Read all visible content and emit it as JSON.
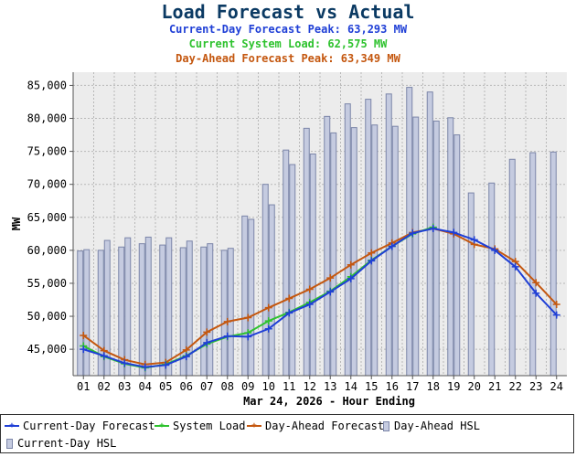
{
  "header": {
    "title": "Load Forecast vs Actual",
    "current_day_peak": "Current-Day Forecast Peak:  63,293 MW",
    "system_load": "Current System Load:  62,575 MW",
    "day_ahead_peak": "Day-Ahead Forecast Peak:  63,349 MW"
  },
  "colors": {
    "title": "#0b3a63",
    "current_day": "#1f3fd6",
    "system_load": "#2ec22e",
    "day_ahead": "#c4570f",
    "hsl_fill": "#c5cbe0",
    "hsl_stroke": "#7b85a8",
    "plot_bg": "#ececec",
    "grid": "#b8b8b8"
  },
  "chart_data": {
    "type": "bar",
    "xlabel": "Mar 24, 2026 - Hour Ending",
    "ylabel": "MW",
    "ylim": [
      41000,
      87000
    ],
    "yticks": [
      45000,
      50000,
      55000,
      60000,
      65000,
      70000,
      75000,
      80000,
      85000
    ],
    "ytick_labels": [
      "45,000",
      "50,000",
      "55,000",
      "60,000",
      "65,000",
      "70,000",
      "75,000",
      "80,000",
      "85,000"
    ],
    "grid": true,
    "legend_position": "bottom",
    "categories": [
      "01",
      "02",
      "03",
      "04",
      "05",
      "06",
      "07",
      "08",
      "09",
      "10",
      "11",
      "12",
      "13",
      "14",
      "15",
      "16",
      "17",
      "18",
      "19",
      "20",
      "21",
      "22",
      "23",
      "24"
    ],
    "series": [
      {
        "name": "Day-Ahead HSL",
        "type": "bar",
        "values": [
          59900,
          60000,
          60500,
          61000,
          60800,
          60400,
          60500,
          60000,
          65200,
          70000,
          75200,
          78500,
          80300,
          82200,
          82900,
          83700,
          84700,
          84000,
          80100,
          68700,
          70200,
          73800,
          74800,
          74900
        ]
      },
      {
        "name": "Current-Day HSL",
        "type": "bar",
        "values": [
          60100,
          61500,
          61900,
          62000,
          61900,
          61400,
          61000,
          60300,
          64700,
          66900,
          73000,
          74600,
          77800,
          78600,
          79000,
          78800,
          80200,
          79600,
          77500,
          null,
          null,
          null,
          null,
          null
        ]
      },
      {
        "name": "Current-Day Forecast",
        "type": "line",
        "values": [
          45000,
          44000,
          42900,
          42300,
          42600,
          43900,
          46000,
          47000,
          46900,
          48100,
          50500,
          51800,
          53700,
          55700,
          58400,
          60600,
          62600,
          63300,
          62700,
          61600,
          60000,
          57500,
          53500,
          50200
        ]
      },
      {
        "name": "System Load",
        "type": "line",
        "values": [
          45500,
          43900,
          42800,
          42200,
          42700,
          44000,
          45800,
          46900,
          47500,
          49300,
          50600,
          52100,
          53800,
          56000,
          58500,
          60600,
          62500,
          63500,
          null,
          null,
          null,
          null,
          null,
          null
        ]
      },
      {
        "name": "Day-Ahead Forecast",
        "type": "line",
        "values": [
          47100,
          44800,
          43400,
          42700,
          43000,
          44900,
          47600,
          49200,
          49800,
          51300,
          52700,
          54100,
          55800,
          57800,
          59600,
          61100,
          62700,
          63300,
          62500,
          60900,
          60200,
          58300,
          55100,
          51800
        ]
      }
    ]
  },
  "legend": [
    {
      "label": "Current-Day Forecast",
      "kind": "line",
      "color": "#1f3fd6",
      "marker": "plus"
    },
    {
      "label": "System Load",
      "kind": "line",
      "color": "#2ec22e",
      "marker": "plus"
    },
    {
      "label": "Day-Ahead Forecast",
      "kind": "line",
      "color": "#c4570f",
      "marker": "plus"
    },
    {
      "label": "Day-Ahead HSL",
      "kind": "bar"
    },
    {
      "label": "Current-Day HSL",
      "kind": "bar"
    }
  ]
}
